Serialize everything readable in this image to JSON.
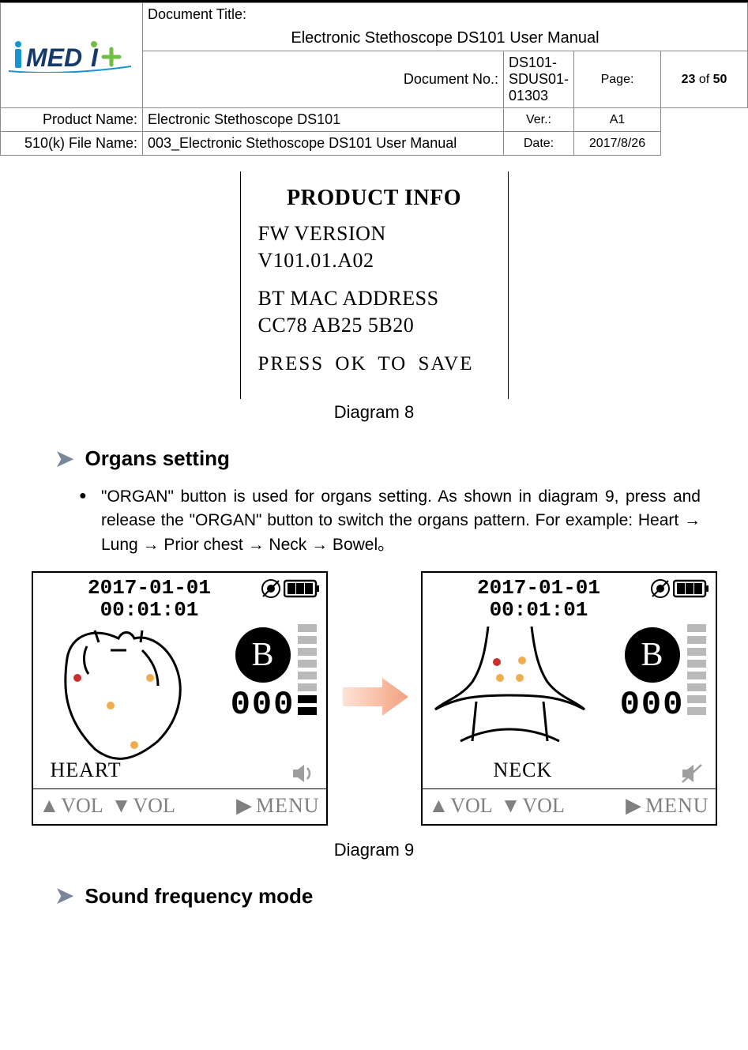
{
  "header": {
    "doc_title_label": "Document Title:",
    "doc_title": "Electronic Stethoscope DS101 User Manual",
    "doc_no_label": "Document No.:",
    "doc_no": "DS101-SDUS01-01303",
    "page_label": "Page:",
    "page_current": "23",
    "page_of": "of",
    "page_total": "50",
    "product_name_label": "Product Name:",
    "product_name": "Electronic Stethoscope DS101",
    "ver_label": "Ver.:",
    "ver": "A1",
    "file_name_label": "510(k) File Name:",
    "file_name": "003_Electronic Stethoscope DS101 User Manual",
    "date_label": "Date:",
    "date": "2017/8/26"
  },
  "logo": {
    "text_i": "İ",
    "text_med": "MED",
    "text_i2": "I",
    "plus_color": "#6fbf44",
    "blue": "#1795d3",
    "navy": "#143a6b"
  },
  "diagram8": {
    "title": "PRODUCT INFO",
    "fw_label": "FW VERSION",
    "fw_value": "V101.01.A02",
    "mac_label": "BT MAC ADDRESS",
    "mac_value": "CC78 AB25 5B20",
    "save": "PRESS  OK  TO  SAVE",
    "caption": "Diagram 8"
  },
  "section_organs": {
    "title": "Organs setting",
    "paragraph_prefix": "\"ORGAN\" button is used for organs setting. As shown in diagram 9, press and release the \"ORGAN\" button to switch the organs pattern. For example: ",
    "sequence": [
      "Heart",
      "Lung ",
      "Prior chest",
      "Neck",
      "Bowel"
    ],
    "arrow_glyph": " → ",
    "sentence_end": "。"
  },
  "diagram9": {
    "date": "2017-01-01",
    "time": "00:01:01",
    "b_label": "B",
    "counter": "000",
    "panels": {
      "left": {
        "organ": "HEART"
      },
      "right": {
        "organ": "NECK"
      }
    },
    "bottom": {
      "vol_up": "VOL",
      "vol_down": "VOL",
      "menu": "MENU"
    },
    "vlevel_bars": {
      "count": 8,
      "colors_left": [
        "#b9b9b9",
        "#b9b9b9",
        "#b9b9b9",
        "#b9b9b9",
        "#b9b9b9",
        "#b9b9b9",
        "#000000",
        "#000000"
      ],
      "colors_right": [
        "#b9b9b9",
        "#b9b9b9",
        "#b9b9b9",
        "#b9b9b9",
        "#b9b9b9",
        "#b9b9b9",
        "#b9b9b9",
        "#b9b9b9"
      ]
    },
    "battery_segments": 3,
    "caption": "Diagram 9",
    "arrow_color": "#f4a07e",
    "dot_red": "#c9302c",
    "dot_orange": "#f0ad4e"
  },
  "section_sound": {
    "title": "Sound frequency mode"
  },
  "colors": {
    "rule": "#000000",
    "border": "#888888",
    "grey_text": "#808080",
    "icon_grey": "#9e9e9e"
  }
}
